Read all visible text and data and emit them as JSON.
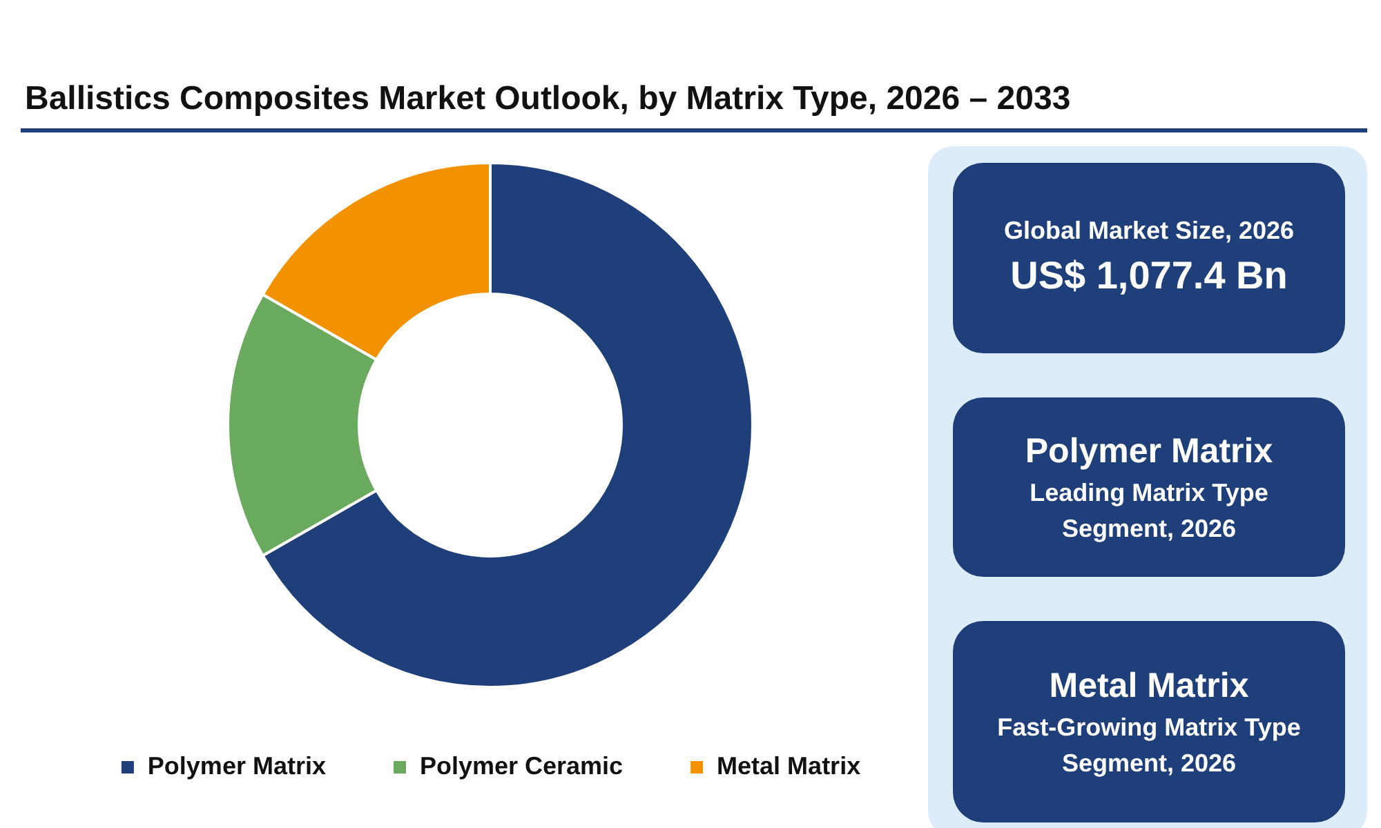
{
  "chart_data": {
    "type": "donut",
    "title": "Ballistics Composites Market Outlook, by Matrix Type, 2026 – 2033",
    "categories": [
      "Polymer Matrix",
      "Polymer Ceramic",
      "Metal Matrix"
    ],
    "values": [
      66.7,
      16.6,
      16.7
    ],
    "colors": [
      "#1f3f7a",
      "#6aaa5e",
      "#f39200"
    ],
    "legend": "bottom",
    "annotations": [
      "Global Market Size, 2026",
      "US$ 1,077.4 Bn",
      "Polymer Matrix",
      "Leading Matrix Type Segment, 2026",
      "Metal Matrix",
      "Fast-Growing Matrix Type Segment, 2026"
    ]
  }
}
